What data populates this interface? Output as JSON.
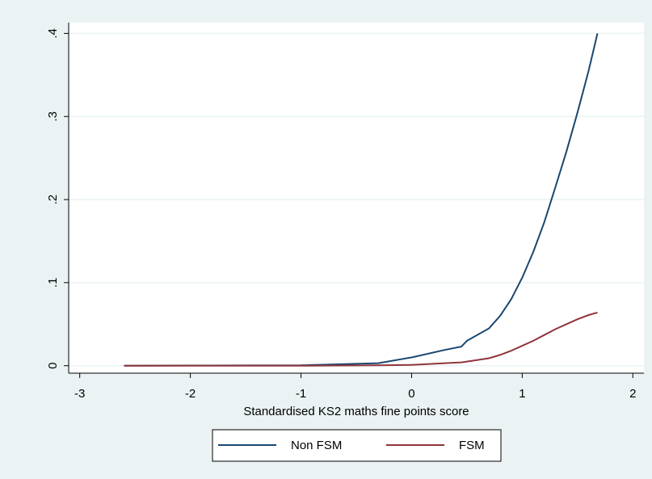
{
  "chart_data": {
    "type": "line",
    "x_label": "Standardised KS2 maths fine points score",
    "x": [
      -2.6,
      -2,
      -1,
      -0.3,
      0,
      0.3,
      0.45,
      0.5,
      0.7,
      0.8,
      0.9,
      1.0,
      1.1,
      1.2,
      1.3,
      1.4,
      1.5,
      1.6,
      1.68
    ],
    "series": [
      {
        "name": "Non FSM",
        "color": "#1a476f",
        "values": [
          0,
          0.0002,
          0.0005,
          0.003,
          0.01,
          0.019,
          0.023,
          0.03,
          0.045,
          0.06,
          0.08,
          0.106,
          0.137,
          0.173,
          0.215,
          0.258,
          0.305,
          0.355,
          0.4
        ]
      },
      {
        "name": "FSM",
        "color": "#90353b",
        "values": [
          0,
          0,
          0,
          0.0005,
          0.001,
          0.003,
          0.004,
          0.005,
          0.009,
          0.013,
          0.018,
          0.024,
          0.03,
          0.037,
          0.044,
          0.05,
          0.056,
          0.061,
          0.064
        ]
      }
    ],
    "xlim": [
      -3.1,
      2.1
    ],
    "xticks": [
      -3,
      -2,
      -1,
      0,
      1,
      2
    ],
    "ylim": [
      -0.009,
      0.413
    ],
    "yticks": [
      0,
      {
        "value": 0.1,
        "label": ".1"
      },
      {
        "value": 0.2,
        "label": ".2"
      },
      {
        "value": 0.3,
        "label": ".3"
      },
      {
        "value": 0.4,
        "label": ".4"
      }
    ],
    "grid": true,
    "legend": "bottom"
  }
}
